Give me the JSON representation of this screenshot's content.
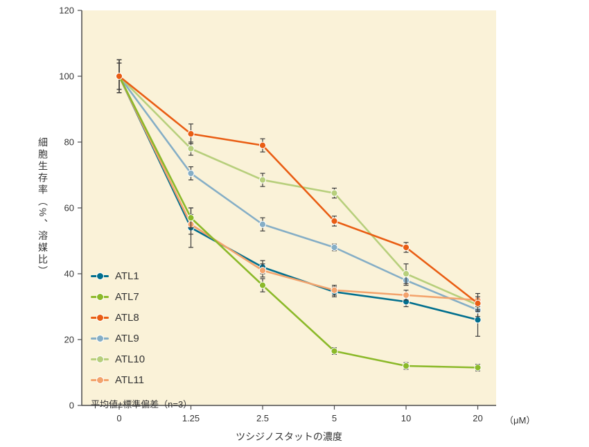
{
  "chart_data": {
    "type": "line",
    "title": "",
    "xlabel": "ツシジノスタットの濃度",
    "ylabel": "細胞生存率（%、溶媒比）",
    "x_unit_label": "（μM）",
    "note": "平均値±標準偏差（n=3）",
    "categories": [
      "0",
      "1.25",
      "2.5",
      "5",
      "10",
      "20"
    ],
    "y_ticks": [
      0,
      20,
      40,
      60,
      80,
      100,
      120
    ],
    "ylim": [
      0,
      120
    ],
    "grid": false,
    "legend_position": "inside-bottom-left",
    "plot_bg": "#faf2d8",
    "axis_color": "#4a4a4a",
    "error_bar_color": "#3a3a3a",
    "series": [
      {
        "name": "ATL1",
        "color": "#006f8e",
        "values": [
          100,
          54,
          42,
          34.5,
          31.5,
          26
        ],
        "errors": [
          5,
          6,
          2,
          1.5,
          1.5,
          5
        ]
      },
      {
        "name": "ATL7",
        "color": "#8bb929",
        "values": [
          100,
          57,
          36.5,
          16.5,
          12,
          11.5
        ],
        "errors": [
          5,
          3,
          2,
          1,
          1,
          1
        ]
      },
      {
        "name": "ATL8",
        "color": "#e95d13",
        "values": [
          100,
          82.5,
          79,
          56,
          48,
          31
        ],
        "errors": [
          4,
          3,
          2,
          1.5,
          1.5,
          2
        ]
      },
      {
        "name": "ATL9",
        "color": "#85aec6",
        "values": [
          100,
          70.5,
          55,
          48,
          38,
          29
        ],
        "errors": [
          5,
          2,
          2,
          1,
          1.5,
          2
        ]
      },
      {
        "name": "ATL10",
        "color": "#b7cf7c",
        "values": [
          100,
          78,
          68.5,
          64.5,
          40,
          30.5
        ],
        "errors": [
          4,
          2,
          2,
          1.5,
          3,
          2
        ]
      },
      {
        "name": "ATL11",
        "color": "#f3a36c",
        "values": [
          100,
          55,
          41,
          35,
          33.5,
          32
        ],
        "errors": [
          5,
          3,
          2,
          1.5,
          1.5,
          2
        ]
      }
    ]
  }
}
